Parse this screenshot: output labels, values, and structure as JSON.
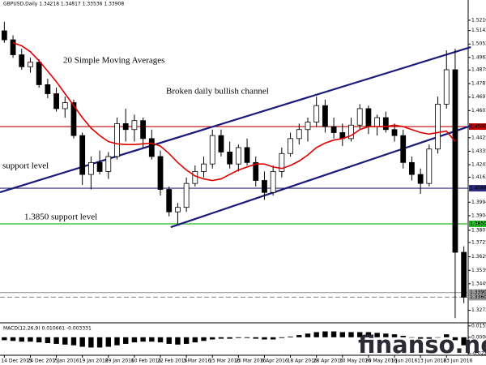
{
  "chart_data": {
    "type": "candlestick",
    "title": "GBPUSD,Daily  1.34218 1.34817 1.33536 1.33908",
    "categories": [
      "14 Dec 2015",
      null,
      null,
      "24 Dec 2015",
      null,
      null,
      "7 Jan 2016",
      null,
      null,
      "19 Jan 2016",
      null,
      null,
      "29 Jan 2016",
      null,
      null,
      "10 Feb 2016",
      null,
      null,
      "22 Feb 2016",
      null,
      null,
      "3 Mar 2016",
      null,
      null,
      "15 Mar 2016",
      null,
      null,
      "25 Mar 2016",
      null,
      null,
      "6 Apr 2016",
      null,
      null,
      "18 Apr 2016",
      null,
      null,
      "28 Apr 2016",
      null,
      null,
      "10 May 2016",
      null,
      null,
      "20 May 2016",
      null,
      null,
      "1 Jun 2016",
      null,
      null,
      "13 Jun 2016",
      null,
      null,
      "23 Jun 2016",
      null,
      null
    ],
    "open": [
      1.514,
      1.508,
      1.498,
      1.49,
      1.493,
      1.478,
      1.472,
      1.462,
      1.466,
      1.444,
      1.418,
      1.426,
      1.42,
      1.43,
      1.452,
      1.448,
      1.454,
      1.442,
      1.43,
      1.408,
      1.393,
      1.396,
      1.412,
      1.42,
      1.425,
      1.444,
      1.433,
      1.425,
      1.436,
      1.426,
      1.414,
      1.406,
      1.42,
      1.432,
      1.442,
      1.448,
      1.453,
      1.464,
      1.45,
      1.446,
      1.442,
      1.451,
      1.462,
      1.45,
      1.456,
      1.448,
      1.444,
      1.426,
      1.418,
      1.412,
      1.435,
      1.465,
      1.488,
      1.366
    ],
    "high": [
      1.52,
      1.511,
      1.502,
      1.496,
      1.495,
      1.482,
      1.476,
      1.47,
      1.468,
      1.446,
      1.43,
      1.434,
      1.433,
      1.456,
      1.462,
      1.458,
      1.456,
      1.448,
      1.434,
      1.41,
      1.399,
      1.416,
      1.424,
      1.43,
      1.448,
      1.448,
      1.44,
      1.438,
      1.442,
      1.43,
      1.42,
      1.424,
      1.436,
      1.446,
      1.452,
      1.456,
      1.47,
      1.468,
      1.456,
      1.452,
      1.456,
      1.465,
      1.464,
      1.458,
      1.46,
      1.452,
      1.448,
      1.43,
      1.422,
      1.438,
      1.47,
      1.501,
      1.502,
      1.37
    ],
    "low": [
      1.506,
      1.496,
      1.488,
      1.486,
      1.476,
      1.469,
      1.46,
      1.456,
      1.442,
      1.411,
      1.408,
      1.418,
      1.415,
      1.428,
      1.44,
      1.44,
      1.436,
      1.428,
      1.404,
      1.39,
      1.385,
      1.393,
      1.41,
      1.416,
      1.422,
      1.43,
      1.422,
      1.42,
      1.424,
      1.41,
      1.401,
      1.404,
      1.416,
      1.43,
      1.438,
      1.44,
      1.45,
      1.446,
      1.442,
      1.437,
      1.44,
      1.448,
      1.445,
      1.444,
      1.446,
      1.44,
      1.422,
      1.414,
      1.405,
      1.41,
      1.432,
      1.462,
      1.322,
      1.332
    ],
    "close": [
      1.508,
      1.498,
      1.49,
      1.493,
      1.478,
      1.472,
      1.462,
      1.466,
      1.444,
      1.418,
      1.426,
      1.42,
      1.43,
      1.452,
      1.448,
      1.454,
      1.442,
      1.43,
      1.408,
      1.393,
      1.396,
      1.412,
      1.42,
      1.425,
      1.444,
      1.433,
      1.425,
      1.436,
      1.426,
      1.414,
      1.406,
      1.42,
      1.432,
      1.442,
      1.448,
      1.453,
      1.464,
      1.45,
      1.446,
      1.442,
      1.451,
      1.462,
      1.45,
      1.456,
      1.448,
      1.444,
      1.426,
      1.418,
      1.412,
      1.435,
      1.465,
      1.488,
      1.366,
      1.336
    ],
    "ma": {
      "color": "#e00000",
      "values": [
        null,
        1.506,
        1.504,
        1.5,
        1.494,
        1.487,
        1.48,
        1.472,
        1.464,
        1.456,
        1.449,
        1.444,
        1.44,
        1.4385,
        1.438,
        1.438,
        1.4385,
        1.439,
        1.437,
        1.432,
        1.426,
        1.421,
        1.417,
        1.415,
        1.414,
        1.415,
        1.418,
        1.421,
        1.423,
        1.425,
        1.425,
        1.423,
        1.422,
        1.424,
        1.427,
        1.431,
        1.436,
        1.439,
        1.441,
        1.442,
        1.444,
        1.448,
        1.45,
        1.45,
        1.45,
        1.451,
        1.45,
        1.448,
        1.446,
        1.445,
        1.446,
        1.447,
        1.44,
        null
      ]
    },
    "channels": [
      {
        "color": "#1a1a7a",
        "x": [
          -0.5,
          53.8
        ],
        "y": [
          1.4061,
          1.5031
        ]
      },
      {
        "color": "#1a1a7a",
        "x": [
          19.2,
          53.8
        ],
        "y": [
          1.3828,
          1.4505
        ]
      }
    ],
    "levels": [
      {
        "value": 1.45,
        "label": "1.45000",
        "color": "#c00000"
      },
      {
        "value": 1.4088,
        "label": "1.40880",
        "color": "#2a2a80"
      },
      {
        "value": 1.385,
        "label": "1.38500",
        "color": "#22bb22"
      },
      {
        "value": 1.33908,
        "label": "1.33908",
        "color": "#9a9a9a"
      },
      {
        "value": 1.336,
        "label": "1.33600",
        "color": "#9a9a9a"
      }
    ],
    "annotations": [
      {
        "text": "20 Simple Moving Averages",
        "color": "#e00000"
      },
      {
        "text": "Broken daily bullish channel",
        "color": "#1a1a7a"
      },
      {
        "text": "support level",
        "color": "#2a2a80"
      },
      {
        "text": "1.3850 support level",
        "color": "#22aa22"
      }
    ],
    "ylim": [
      1.3194,
      1.5346
    ],
    "yticks": [
      {
        "value": 1.52105,
        "label": "1.52105"
      },
      {
        "value": 1.5142,
        "label": "1.51420"
      },
      {
        "value": 1.5052,
        "label": "1.50520"
      },
      {
        "value": 1.4962,
        "label": "1.49620"
      },
      {
        "value": 1.48785,
        "label": "1.48785"
      },
      {
        "value": 1.4787,
        "label": "1.47870"
      },
      {
        "value": 1.4697,
        "label": "1.46970"
      },
      {
        "value": 1.4607,
        "label": "1.46070"
      },
      {
        "value": 1.44255,
        "label": "1.44255"
      },
      {
        "value": 1.43355,
        "label": "1.43355"
      },
      {
        "value": 1.42455,
        "label": "1.42455"
      },
      {
        "value": 1.4162,
        "label": "1.41620"
      },
      {
        "value": 1.39945,
        "label": "1.39945"
      },
      {
        "value": 1.39045,
        "label": "1.39045"
      },
      {
        "value": 1.3807,
        "label": "1.38070"
      },
      {
        "value": 1.37255,
        "label": "1.37255"
      },
      {
        "value": 1.36295,
        "label": "1.36295"
      },
      {
        "value": 1.35395,
        "label": "1.35395"
      },
      {
        "value": 1.34495,
        "label": "1.34495"
      },
      {
        "value": 1.3272,
        "label": "1.32720"
      }
    ],
    "macd": {
      "title": "MACD(12,26,9) 0.010661 -0.003331",
      "values": [
        -0.004,
        -0.005,
        -0.006,
        -0.006,
        -0.007,
        -0.008,
        -0.009,
        -0.01,
        -0.011,
        -0.013,
        -0.014,
        -0.014,
        -0.013,
        -0.011,
        -0.009,
        -0.007,
        -0.006,
        -0.006,
        -0.007,
        -0.009,
        -0.01,
        -0.009,
        -0.007,
        -0.005,
        -0.003,
        -0.002,
        -0.002,
        -0.001,
        -0.001,
        -0.002,
        -0.003,
        -0.003,
        -0.001,
        0.001,
        0.003,
        0.005,
        0.007,
        0.008,
        0.008,
        0.007,
        0.007,
        0.007,
        0.007,
        0.006,
        0.005,
        0.004,
        0.002,
        0.0,
        -0.002,
        -0.002,
        0.0,
        0.004,
        -0.004,
        -0.011
      ],
      "ylim": [
        -0.0235,
        0.0175
      ],
      "yticks": [
        0.015522,
        {
          "value": 0,
          "label": "0.00000"
        },
        -0.022248
      ]
    },
    "watermark": "finanso.net"
  }
}
